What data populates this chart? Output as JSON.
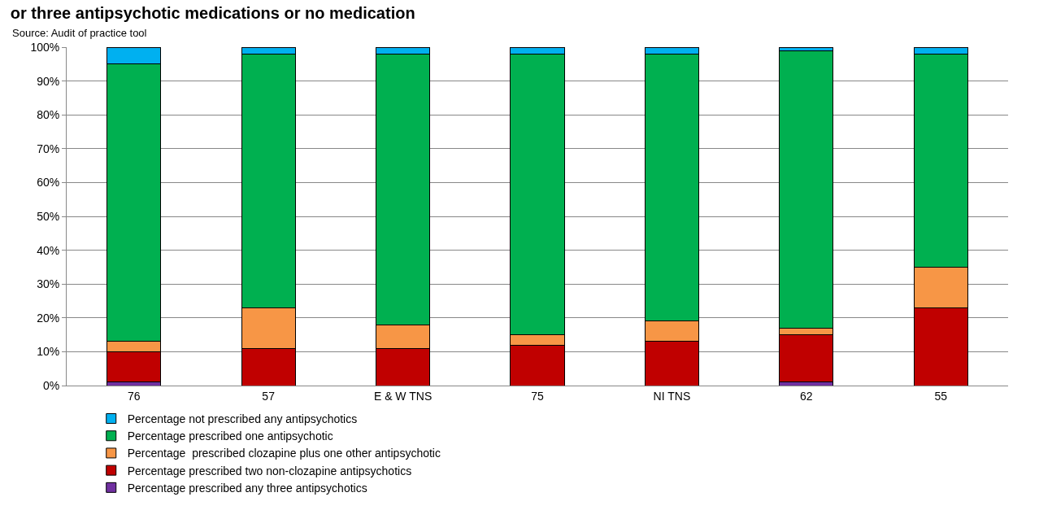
{
  "chart_data": {
    "type": "bar",
    "stacked": true,
    "title": "or three antipsychotic medications or no medication",
    "annotations": [
      "Source: Audit of practice tool"
    ],
    "categories": [
      "76",
      "57",
      "E & W TNS",
      "75",
      "NI TNS",
      "62",
      "55"
    ],
    "series": [
      {
        "name": "Percentage prescribed any three antipsychotics",
        "color": "#7030a0",
        "values": [
          1,
          0,
          0,
          0,
          0,
          1,
          0
        ]
      },
      {
        "name": "Percentage prescribed two non-clozapine antipsychotics",
        "color": "#c00000",
        "values": [
          9,
          11,
          11,
          12,
          13,
          14,
          23
        ]
      },
      {
        "name": "Percentage  prescribed clozapine plus one other antipsychotic",
        "color": "#f79646",
        "values": [
          3,
          12,
          7,
          3,
          6,
          2,
          12
        ]
      },
      {
        "name": "Percentage prescribed one antipsychotic",
        "color": "#00b050",
        "values": [
          82,
          75,
          80,
          83,
          79,
          82,
          63
        ]
      },
      {
        "name": "Percentage not prescribed any antipsychotics",
        "color": "#00b0f0",
        "values": [
          5,
          2,
          2,
          2,
          2,
          1,
          2
        ]
      }
    ],
    "ylim": [
      0,
      100
    ],
    "yticks": [
      {
        "value": 0,
        "label": "0%"
      },
      {
        "value": 10,
        "label": "10%"
      },
      {
        "value": 20,
        "label": "20%"
      },
      {
        "value": 30,
        "label": "30%"
      },
      {
        "value": 40,
        "label": "40%"
      },
      {
        "value": 50,
        "label": "50%"
      },
      {
        "value": 60,
        "label": "60%"
      },
      {
        "value": 70,
        "label": "70%"
      },
      {
        "value": 80,
        "label": "80%"
      },
      {
        "value": 90,
        "label": "90%"
      },
      {
        "value": 100,
        "label": "100%"
      }
    ],
    "grid": "y",
    "legend": "bottom"
  }
}
